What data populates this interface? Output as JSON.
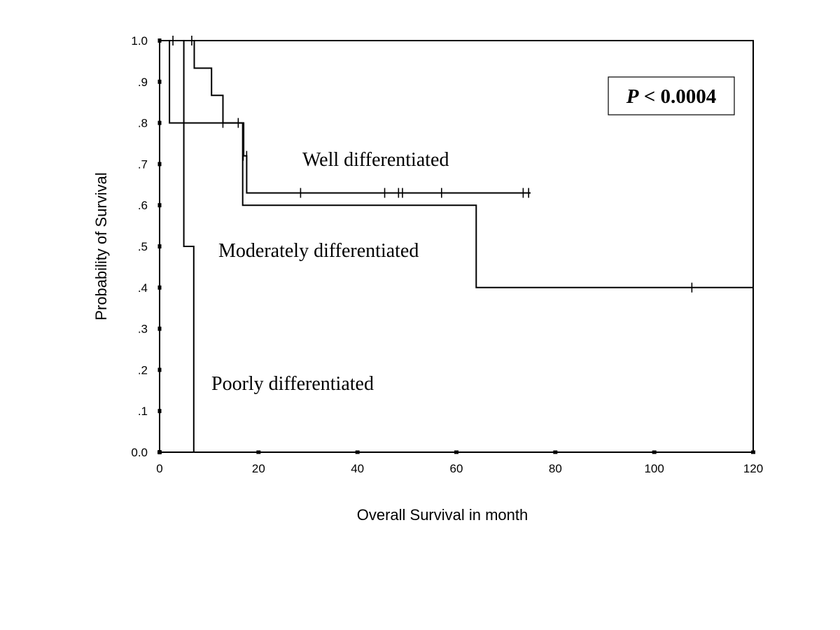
{
  "chart_data": {
    "type": "line",
    "subtype": "kaplan-meier step",
    "title": "",
    "xlabel": "Overall Survival in month",
    "ylabel": "Probability of Survival",
    "xlim": [
      0,
      120
    ],
    "ylim": [
      0,
      1.0
    ],
    "x_ticks": [
      0,
      20,
      40,
      60,
      80,
      100,
      120
    ],
    "x_tick_labels": [
      "0",
      "20",
      "40",
      "60",
      "80",
      "100",
      "120"
    ],
    "y_ticks": [
      0,
      0.1,
      0.2,
      0.3,
      0.4,
      0.5,
      0.6,
      0.7,
      0.8,
      0.9,
      1.0
    ],
    "y_tick_labels": [
      "0.0",
      ".1",
      ".2",
      ".3",
      ".4",
      ".5",
      ".6",
      ".7",
      ".8",
      ".9",
      "1.0"
    ],
    "grid": false,
    "legend": "none (inline labels)",
    "annotation": {
      "italic": "P",
      "rest": " < 0.0004"
    },
    "series": [
      {
        "name": "Well differentiated",
        "steps": [
          [
            0,
            1.0
          ],
          [
            7,
            1.0
          ],
          [
            7,
            0.933
          ],
          [
            10.5,
            0.933
          ],
          [
            10.5,
            0.867
          ],
          [
            12.8,
            0.867
          ],
          [
            12.8,
            0.8
          ],
          [
            17,
            0.8
          ],
          [
            17,
            0.72
          ],
          [
            17.6,
            0.72
          ],
          [
            17.6,
            0.63
          ],
          [
            75,
            0.63
          ]
        ],
        "censored": [
          [
            6.5,
            1.0
          ],
          [
            12.8,
            0.8
          ],
          [
            17.6,
            0.72
          ],
          [
            28.5,
            0.63
          ],
          [
            45.5,
            0.63
          ],
          [
            48.3,
            0.63
          ],
          [
            49.1,
            0.63
          ],
          [
            57,
            0.63
          ],
          [
            73.5,
            0.63
          ],
          [
            74.6,
            0.63
          ]
        ]
      },
      {
        "name": "Moderately differentiated",
        "steps": [
          [
            0,
            1.0
          ],
          [
            2,
            1.0
          ],
          [
            2,
            0.8
          ],
          [
            16.8,
            0.8
          ],
          [
            16.8,
            0.6
          ],
          [
            64,
            0.6
          ],
          [
            64,
            0.4
          ],
          [
            120,
            0.4
          ]
        ],
        "censored": [
          [
            2.7,
            1.0
          ],
          [
            15.9,
            0.8
          ],
          [
            16.9,
            0.72
          ],
          [
            107.6,
            0.4
          ]
        ]
      },
      {
        "name": "Poorly differentiated",
        "steps": [
          [
            0,
            1.0
          ],
          [
            4.9,
            1.0
          ],
          [
            4.9,
            0.5
          ],
          [
            6.9,
            0.5
          ],
          [
            6.9,
            0.0
          ]
        ],
        "censored": []
      }
    ]
  },
  "labels": {
    "well": "Well differentiated",
    "moderate": "Moderately differentiated",
    "poor": "Poorly differentiated"
  }
}
